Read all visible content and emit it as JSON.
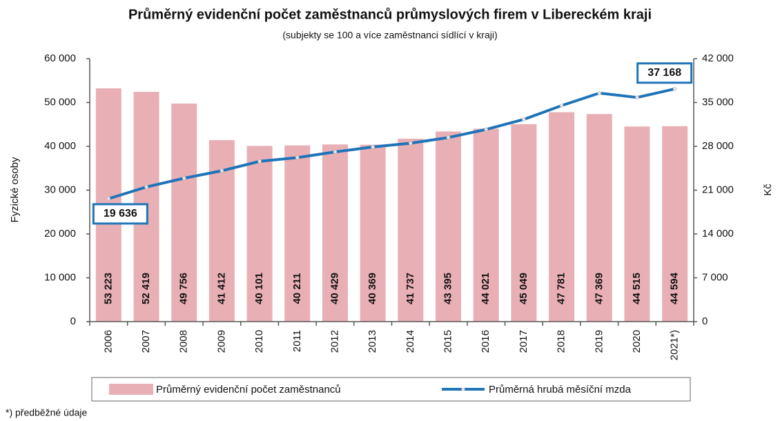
{
  "chart_data": {
    "type": "bar_line",
    "title": "Průměrný evidenční počet zaměstnanců průmyslových firem v Libereckém kraji",
    "subtitle": "(subjekty se 100 a více zaměstnanci sídlící v kraji)",
    "y_label": "Fyzické osoby",
    "y2_label": "Kč",
    "footnote": "*) předběžné údaje",
    "categories": [
      "2006",
      "2007",
      "2008",
      "2009",
      "2010",
      "2011",
      "2012",
      "2013",
      "2014",
      "2015",
      "2016",
      "2017",
      "2018",
      "2019",
      "2020",
      "2021*)"
    ],
    "series": [
      {
        "name": "Průměrný evidenční počet zaměstnanců",
        "type": "bar",
        "color": "#e8b0b5",
        "values": [
          53223,
          52419,
          49756,
          41412,
          40101,
          40211,
          40429,
          40369,
          41737,
          43395,
          44021,
          45049,
          47781,
          47369,
          44515,
          44594
        ],
        "value_labels": [
          "53 223",
          "52 419",
          "49 756",
          "41 412",
          "40 101",
          "40 211",
          "40 429",
          "40 369",
          "41 737",
          "43 395",
          "44 021",
          "45 049",
          "47 781",
          "47 369",
          "44 515",
          "44 594"
        ]
      },
      {
        "name": "Průměrná hrubá měsíční mzda",
        "type": "line",
        "axis": "y2",
        "color": "#1f74b8",
        "values": [
          19636,
          21500,
          22900,
          24100,
          25600,
          26200,
          27100,
          27900,
          28500,
          29400,
          30700,
          32300,
          34500,
          36500,
          35800,
          37168
        ],
        "value_labels": [
          "19 636",
          null,
          null,
          null,
          null,
          null,
          null,
          null,
          null,
          null,
          null,
          null,
          null,
          null,
          null,
          "37 168"
        ]
      }
    ],
    "ylim": [
      0,
      60000
    ],
    "yticks": [
      0,
      {
        "value": 10000,
        "label": "10 000"
      },
      {
        "value": 20000,
        "label": "20 000"
      },
      {
        "value": 30000,
        "label": "30 000"
      },
      {
        "value": 40000,
        "label": "40 000"
      },
      {
        "value": 50000,
        "label": "50 000"
      },
      {
        "value": 60000,
        "label": "60 000"
      }
    ],
    "y2lim": [
      0,
      42000
    ],
    "y2ticks": [
      0,
      {
        "value": 7000,
        "label": "7 000"
      },
      {
        "value": 14000,
        "label": "14 000"
      },
      {
        "value": 21000,
        "label": "21 000"
      },
      {
        "value": 28000,
        "label": "28 000"
      },
      {
        "value": 35000,
        "label": "35 000"
      },
      {
        "value": 42000,
        "label": "42 000"
      }
    ],
    "legend": "bottom"
  }
}
